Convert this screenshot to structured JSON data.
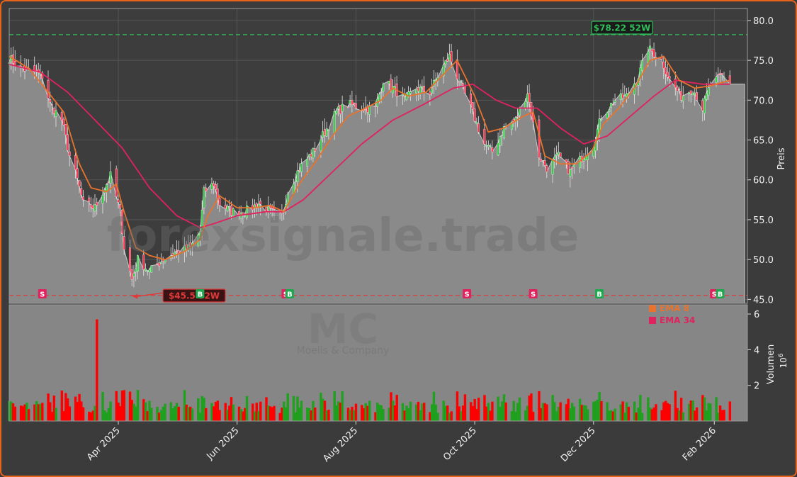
{
  "chart_data": [
    {
      "type": "candlestick",
      "ticker": "MC",
      "company": "Moelis & Company",
      "watermark": "forexsignale.trade",
      "ylabel": "Preis",
      "ylim": [
        44.5,
        81.5
      ],
      "yticks": [
        "45.0",
        "50.0",
        "55.0",
        "60.0",
        "65.0",
        "70.0",
        "75.0",
        "80.0"
      ],
      "ytick_values": [
        45,
        50,
        55,
        60,
        65,
        70,
        75,
        80
      ],
      "x_range": [
        "2025-02-04",
        "2026-02-18"
      ],
      "xticks": [
        {
          "label": "Apr 2025",
          "date": "2025-04-01"
        },
        {
          "label": "Jun 2025",
          "date": "2025-06-01"
        },
        {
          "label": "Aug 2025",
          "date": "2025-08-01"
        },
        {
          "label": "Oct 2025",
          "date": "2025-10-01"
        },
        {
          "label": "Dec 2025",
          "date": "2025-12-01"
        },
        {
          "label": "Feb 2026",
          "date": "2026-02-01"
        }
      ],
      "grid": true,
      "high_52w": {
        "label": "$78.22 52W",
        "value": 78.22,
        "date": "2025-12-29",
        "color": "#2ecc71"
      },
      "low_52w": {
        "label": "$45.5 52W",
        "value": 45.5,
        "date": "2025-04-08",
        "color": "#e74c3c"
      },
      "legend": {
        "position": "top-right",
        "items": [
          {
            "label": "EMA 8",
            "color": "#e8732c"
          },
          {
            "label": "EMA 34",
            "color": "#e0225e"
          }
        ]
      },
      "close_path": [
        [
          "2025-02-04",
          75.3
        ],
        [
          "2025-02-10",
          74.0
        ],
        [
          "2025-02-17",
          73.5
        ],
        [
          "2025-02-21",
          73.0
        ],
        [
          "2025-02-25",
          69.5
        ],
        [
          "2025-03-03",
          67.5
        ],
        [
          "2025-03-07",
          63.0
        ],
        [
          "2025-03-11",
          60.0
        ],
        [
          "2025-03-14",
          57.0
        ],
        [
          "2025-03-20",
          56.5
        ],
        [
          "2025-03-24",
          58.5
        ],
        [
          "2025-03-28",
          60.5
        ],
        [
          "2025-04-02",
          56.0
        ],
        [
          "2025-04-04",
          51.5
        ],
        [
          "2025-04-08",
          47.5
        ],
        [
          "2025-04-11",
          50.0
        ],
        [
          "2025-04-17",
          48.5
        ],
        [
          "2025-04-24",
          50.0
        ],
        [
          "2025-05-01",
          51.0
        ],
        [
          "2025-05-08",
          51.5
        ],
        [
          "2025-05-13",
          53.5
        ],
        [
          "2025-05-15",
          58.5
        ],
        [
          "2025-05-20",
          59.5
        ],
        [
          "2025-05-23",
          57.0
        ],
        [
          "2025-05-29",
          56.0
        ],
        [
          "2025-06-05",
          56.0
        ],
        [
          "2025-06-12",
          57.0
        ],
        [
          "2025-06-18",
          56.0
        ],
        [
          "2025-06-24",
          55.5
        ],
        [
          "2025-06-27",
          58.5
        ],
        [
          "2025-07-03",
          61.5
        ],
        [
          "2025-07-10",
          63.5
        ],
        [
          "2025-07-16",
          66.0
        ],
        [
          "2025-07-22",
          68.5
        ],
        [
          "2025-07-28",
          69.5
        ],
        [
          "2025-08-04",
          69.0
        ],
        [
          "2025-08-11",
          69.0
        ],
        [
          "2025-08-15",
          72.5
        ],
        [
          "2025-08-20",
          71.5
        ],
        [
          "2025-08-26",
          70.0
        ],
        [
          "2025-09-01",
          71.5
        ],
        [
          "2025-09-08",
          71.0
        ],
        [
          "2025-09-12",
          73.0
        ],
        [
          "2025-09-18",
          75.5
        ],
        [
          "2025-09-22",
          73.0
        ],
        [
          "2025-09-29",
          69.0
        ],
        [
          "2025-10-06",
          64.5
        ],
        [
          "2025-10-10",
          63.5
        ],
        [
          "2025-10-16",
          66.5
        ],
        [
          "2025-10-22",
          67.5
        ],
        [
          "2025-10-28",
          71.0
        ],
        [
          "2025-11-03",
          63.0
        ],
        [
          "2025-11-07",
          61.5
        ],
        [
          "2025-11-13",
          63.0
        ],
        [
          "2025-11-19",
          61.0
        ],
        [
          "2025-11-24",
          62.5
        ],
        [
          "2025-12-01",
          64.5
        ],
        [
          "2025-12-05",
          68.0
        ],
        [
          "2025-12-12",
          70.0
        ],
        [
          "2025-12-18",
          70.5
        ],
        [
          "2025-12-24",
          73.0
        ],
        [
          "2025-12-29",
          76.5
        ],
        [
          "2026-01-05",
          75.0
        ],
        [
          "2026-01-09",
          72.5
        ],
        [
          "2026-01-15",
          70.5
        ],
        [
          "2026-01-21",
          71.5
        ],
        [
          "2026-01-26",
          69.0
        ],
        [
          "2026-01-30",
          72.0
        ],
        [
          "2026-02-05",
          73.0
        ],
        [
          "2026-02-09",
          72.2
        ]
      ],
      "ema8": [
        [
          "2025-02-04",
          75.5
        ],
        [
          "2025-02-14",
          74.0
        ],
        [
          "2025-02-24",
          71.0
        ],
        [
          "2025-03-04",
          68.5
        ],
        [
          "2025-03-12",
          62.0
        ],
        [
          "2025-03-18",
          59.0
        ],
        [
          "2025-03-26",
          58.5
        ],
        [
          "2025-03-31",
          59.5
        ],
        [
          "2025-04-04",
          56.0
        ],
        [
          "2025-04-10",
          51.5
        ],
        [
          "2025-04-17",
          50.5
        ],
        [
          "2025-04-25",
          50.0
        ],
        [
          "2025-05-05",
          51.0
        ],
        [
          "2025-05-13",
          52.5
        ],
        [
          "2025-05-17",
          55.5
        ],
        [
          "2025-05-23",
          58.0
        ],
        [
          "2025-06-01",
          56.5
        ],
        [
          "2025-06-10",
          56.5
        ],
        [
          "2025-06-18",
          56.8
        ],
        [
          "2025-06-25",
          56.0
        ],
        [
          "2025-07-03",
          59.5
        ],
        [
          "2025-07-12",
          62.5
        ],
        [
          "2025-07-20",
          65.5
        ],
        [
          "2025-07-28",
          68.0
        ],
        [
          "2025-08-06",
          69.0
        ],
        [
          "2025-08-14",
          70.0
        ],
        [
          "2025-08-20",
          71.5
        ],
        [
          "2025-08-28",
          70.5
        ],
        [
          "2025-09-06",
          71.0
        ],
        [
          "2025-09-16",
          73.5
        ],
        [
          "2025-09-22",
          75.0
        ],
        [
          "2025-10-01",
          70.5
        ],
        [
          "2025-10-08",
          66.0
        ],
        [
          "2025-10-16",
          66.5
        ],
        [
          "2025-10-26",
          68.0
        ],
        [
          "2025-10-31",
          68.5
        ],
        [
          "2025-11-06",
          63.0
        ],
        [
          "2025-11-14",
          62.0
        ],
        [
          "2025-11-22",
          62.0
        ],
        [
          "2025-11-30",
          63.5
        ],
        [
          "2025-12-06",
          67.0
        ],
        [
          "2025-12-14",
          69.0
        ],
        [
          "2025-12-22",
          71.5
        ],
        [
          "2025-12-30",
          75.0
        ],
        [
          "2026-01-06",
          75.5
        ],
        [
          "2026-01-14",
          72.5
        ],
        [
          "2026-01-22",
          71.5
        ],
        [
          "2026-01-30",
          71.8
        ],
        [
          "2026-02-09",
          72.5
        ]
      ],
      "ema34": [
        [
          "2025-02-04",
          74.5
        ],
        [
          "2025-02-20",
          73.5
        ],
        [
          "2025-03-06",
          71.0
        ],
        [
          "2025-03-20",
          67.5
        ],
        [
          "2025-04-03",
          64.0
        ],
        [
          "2025-04-17",
          59.0
        ],
        [
          "2025-05-01",
          55.5
        ],
        [
          "2025-05-13",
          54.0
        ],
        [
          "2025-05-20",
          54.5
        ],
        [
          "2025-06-01",
          55.5
        ],
        [
          "2025-06-16",
          56.0
        ],
        [
          "2025-06-25",
          56.0
        ],
        [
          "2025-07-05",
          57.5
        ],
        [
          "2025-07-20",
          61.0
        ],
        [
          "2025-08-04",
          64.5
        ],
        [
          "2025-08-20",
          67.5
        ],
        [
          "2025-09-05",
          69.5
        ],
        [
          "2025-09-20",
          71.5
        ],
        [
          "2025-09-30",
          72.0
        ],
        [
          "2025-10-12",
          70.0
        ],
        [
          "2025-10-22",
          69.0
        ],
        [
          "2025-11-02",
          69.0
        ],
        [
          "2025-11-14",
          66.5
        ],
        [
          "2025-11-26",
          64.5
        ],
        [
          "2025-12-08",
          65.5
        ],
        [
          "2025-12-20",
          68.0
        ],
        [
          "2026-01-01",
          70.5
        ],
        [
          "2026-01-12",
          72.5
        ],
        [
          "2026-01-26",
          72.0
        ],
        [
          "2026-02-09",
          72.0
        ]
      ],
      "markers": [
        {
          "date": "2025-02-21",
          "label": "S",
          "color": "#e0225e"
        },
        {
          "date": "2025-05-13",
          "label": "B",
          "color": "#1fa84f"
        },
        {
          "date": "2025-06-26",
          "label": "S",
          "color": "#e0225e"
        },
        {
          "date": "2025-06-28",
          "label": "B",
          "color": "#1fa84f"
        },
        {
          "date": "2025-09-27",
          "label": "S",
          "color": "#e0225e"
        },
        {
          "date": "2025-10-31",
          "label": "S",
          "color": "#e0225e"
        },
        {
          "date": "2025-12-04",
          "label": "B",
          "color": "#1fa84f"
        },
        {
          "date": "2026-02-01",
          "label": "S",
          "color": "#e0225e"
        },
        {
          "date": "2026-02-04",
          "label": "B",
          "color": "#1fa84f"
        }
      ]
    },
    {
      "type": "bar",
      "ylabel": "Volumen",
      "yunit": "10^6",
      "yticks": [
        "2",
        "4",
        "6"
      ],
      "ytick_values": [
        2,
        4,
        6
      ],
      "ylim": [
        0,
        6.2
      ],
      "volume_up_color": "#1fa01f",
      "volume_down_color": "#ff0000",
      "spike": {
        "date": "2025-03-21",
        "value": 5.7
      },
      "volume_estimate": "typical daily volume about 0.5 to 1.2 million shares"
    }
  ]
}
